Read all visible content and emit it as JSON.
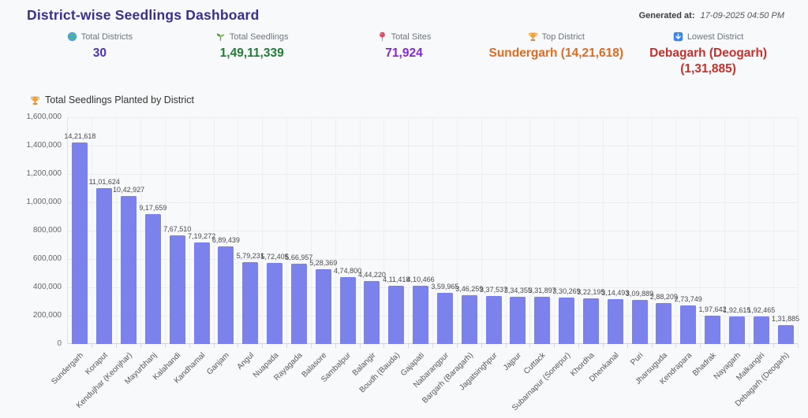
{
  "header": {
    "title": "District-wise Seedlings Dashboard",
    "generated_at_label": "Generated at:",
    "generated_at_value": "17-09-2025 04:50 PM"
  },
  "stats": [
    {
      "icon": "globe-icon",
      "label": "Total Districts",
      "value": "30",
      "color": "#4a33c4"
    },
    {
      "icon": "seedling-icon",
      "label": "Total Seedlings",
      "value": "1,49,11,339",
      "color": "#1e7e34"
    },
    {
      "icon": "pin-icon",
      "label": "Total Sites",
      "value": "71,924",
      "color": "#8627d8"
    },
    {
      "icon": "trophy-icon",
      "label": "Top District",
      "value": "Sundergarh (14,21,618)",
      "color": "#e26b1f"
    },
    {
      "icon": "down-arrow-icon",
      "label": "Lowest District",
      "value": "Debagarh (Deogarh)",
      "value_line2": "(1,31,885)",
      "color": "#c9302c"
    }
  ],
  "chart": {
    "title": "Total Seedlings Planted by District",
    "title_icon": "trophy-icon"
  },
  "chart_data": {
    "type": "bar",
    "title": "Total Seedlings Planted by District",
    "categories": [
      "Sundergarh",
      "Koraput",
      "Kendujhar (Keonjhar)",
      "Mayurbhanj",
      "Kalahandi",
      "Kandhamal",
      "Ganjam",
      "Angul",
      "Nuapada",
      "Rayagada",
      "Balasore",
      "Sambalpur",
      "Balangir",
      "Boudh (Bauda)",
      "Gajapati",
      "Nabarangpur",
      "Bargarh (Baragarh)",
      "Jagatsinghpur",
      "Jajpur",
      "Cuttack",
      "Subarnapur (Sonepur)",
      "Khordha",
      "Dhenkanal",
      "Puri",
      "Jharsuguda",
      "Kendrapara",
      "Bhadrak",
      "Nayagarh",
      "Malkangiri",
      "Debagarh (Deogarh)"
    ],
    "values": [
      1421618,
      1101624,
      1042927,
      917659,
      767510,
      719272,
      689439,
      579231,
      572405,
      566957,
      528369,
      474800,
      444220,
      411418,
      410466,
      359965,
      346259,
      337537,
      334355,
      331897,
      330269,
      322195,
      314493,
      309889,
      288209,
      273749,
      197642,
      192615,
      192465,
      131885
    ],
    "value_labels": [
      "14,21,618",
      "11,01,624",
      "10,42,927",
      "9,17,659",
      "7,67,510",
      "7,19,272",
      "6,89,439",
      "5,79,231",
      "5,72,405",
      "5,66,957",
      "5,28,369",
      "4,74,800",
      "4,44,220",
      "4,11,418",
      "4,10,466",
      "3,59,965",
      "3,46,259",
      "3,37,537",
      "3,34,355",
      "3,31,897",
      "3,30,269",
      "3,22,195",
      "3,14,493",
      "3,09,889",
      "2,88,209",
      "2,73,749",
      "1,97,642",
      "1,92,615",
      "1,92,465",
      "1,31,885"
    ],
    "xlabel": "",
    "ylabel": "",
    "ylim": [
      0,
      1600000
    ],
    "ytick_step": 200000,
    "ytick_labels": [
      "0",
      "200,000",
      "400,000",
      "600,000",
      "800,000",
      "1,000,000",
      "1,200,000",
      "1,400,000",
      "1,600,000"
    ],
    "grid": true,
    "legend_position": "none",
    "bar_color": "#7c82ec"
  }
}
